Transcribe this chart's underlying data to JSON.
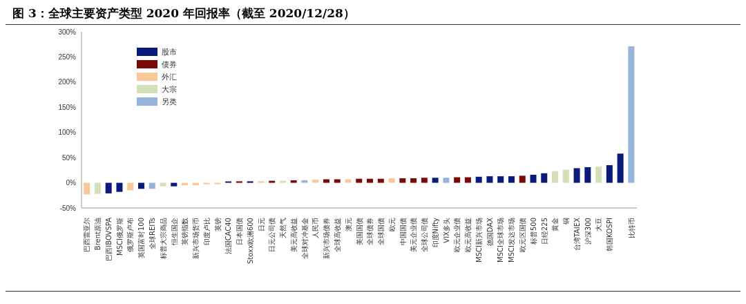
{
  "chart_data": {
    "type": "bar",
    "title": "图 3：全球主要资产类型 2020 年回报率（截至 2020/12/28）",
    "categories": [
      "巴西雷亚尔",
      "Brent原油",
      "巴西IBOVSPA",
      "MSCI俄罗斯",
      "俄罗斯卢布",
      "英国富时100",
      "全球REITs",
      "标普大宗商品",
      "恒生国企",
      "英镑指数",
      "新兴市场货币",
      "印度卢比",
      "英镑",
      "法国CAC40",
      "日本国债",
      "Stoxx欧洲600",
      "日元",
      "日元公司债",
      "天然气",
      "美元高收益",
      "全球对冲基金",
      "人民币",
      "新兴市场债券",
      "全球高收益",
      "澳元",
      "美国国债",
      "全球债券",
      "全球国债",
      "欧元",
      "中国国债",
      "美元企业债",
      "全球公司债",
      "印度Nifty",
      "VIX多头",
      "欧元企业债",
      "欧元高收益",
      "MSCI新兴市场",
      "德国DAX",
      "MSCI全球市场",
      "MSCI发达市场",
      "欧元区国债",
      "标普500",
      "日经225",
      "黄金",
      "铜",
      "台湾TAIEX",
      "沪深300",
      "大豆",
      "韩国KOSPI",
      null,
      "比特币"
    ],
    "stacked": true,
    "series": [
      {
        "name": "股市",
        "color": "#0a1a7a",
        "values": [
          null,
          null,
          -21,
          -18,
          null,
          -12,
          null,
          null,
          -7,
          null,
          null,
          null,
          null,
          1,
          null,
          3,
          null,
          null,
          null,
          null,
          null,
          null,
          null,
          null,
          null,
          null,
          null,
          null,
          null,
          null,
          null,
          null,
          10,
          null,
          null,
          null,
          12,
          13,
          13,
          13,
          null,
          16,
          19,
          null,
          null,
          29,
          31,
          null,
          35,
          58,
          null
        ]
      },
      {
        "name": "债券",
        "color": "#7a0a0a",
        "values": [
          null,
          null,
          null,
          null,
          null,
          null,
          null,
          null,
          null,
          null,
          null,
          null,
          null,
          null,
          3,
          null,
          null,
          4,
          null,
          5,
          null,
          null,
          7,
          7,
          null,
          8,
          8,
          8,
          null,
          9,
          9,
          10,
          null,
          null,
          11,
          11,
          null,
          null,
          null,
          null,
          14,
          null,
          null,
          null,
          null,
          null,
          null,
          null,
          null,
          null,
          null
        ]
      },
      {
        "name": "外汇",
        "color": "#f8c898",
        "values": [
          -23,
          null,
          null,
          null,
          -15,
          null,
          null,
          null,
          null,
          -5,
          -5,
          -3,
          -1,
          null,
          null,
          null,
          3,
          null,
          null,
          null,
          null,
          6,
          null,
          null,
          7,
          null,
          null,
          null,
          9,
          null,
          null,
          null,
          null,
          null,
          null,
          null,
          null,
          null,
          null,
          null,
          null,
          null,
          null,
          null,
          null,
          null,
          null,
          null,
          null,
          null,
          null
        ]
      },
      {
        "name": "大宗",
        "color": "#d3e0b8",
        "values": [
          null,
          -22,
          null,
          null,
          null,
          null,
          null,
          -7,
          null,
          null,
          null,
          null,
          null,
          null,
          null,
          null,
          null,
          null,
          4,
          null,
          null,
          null,
          null,
          null,
          null,
          null,
          null,
          null,
          null,
          null,
          null,
          null,
          null,
          null,
          null,
          null,
          null,
          null,
          null,
          null,
          null,
          null,
          null,
          23,
          26,
          null,
          null,
          32,
          null,
          null,
          null
        ]
      },
      {
        "name": "另类",
        "color": "#95b4dc",
        "values": [
          null,
          null,
          null,
          null,
          null,
          null,
          -12,
          null,
          null,
          null,
          null,
          null,
          null,
          null,
          null,
          null,
          null,
          null,
          null,
          null,
          5,
          null,
          null,
          null,
          null,
          null,
          null,
          null,
          null,
          null,
          null,
          null,
          null,
          10,
          null,
          null,
          null,
          null,
          null,
          null,
          null,
          null,
          null,
          null,
          null,
          null,
          null,
          null,
          null,
          null,
          271
        ]
      }
    ],
    "ylim": [
      -50,
      300
    ],
    "yticks": [
      {
        "value": -50,
        "label": "-50%"
      },
      {
        "value": 0,
        "label": "0%"
      },
      {
        "value": 50,
        "label": "50%"
      },
      {
        "value": 100,
        "label": "100%"
      },
      {
        "value": 150,
        "label": "150%"
      },
      {
        "value": 200,
        "label": "200%"
      },
      {
        "value": 250,
        "label": "250%"
      },
      {
        "value": 300,
        "label": "300%"
      }
    ],
    "grid": false,
    "legend": "top left"
  }
}
